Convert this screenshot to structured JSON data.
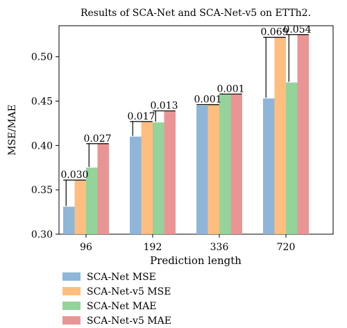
{
  "chart_data": {
    "type": "bar",
    "title": "Results of SCA-Net and SCA-Net-v5 on ETTh2.",
    "xlabel": "Prediction length",
    "ylabel": "MSE/MAE",
    "categories": [
      "96",
      "192",
      "336",
      "720"
    ],
    "ylim": [
      0.3,
      0.535
    ],
    "yticks": [
      "0.30",
      "0.35",
      "0.40",
      "0.45",
      "0.50"
    ],
    "ytick_values": [
      0.3,
      0.35,
      0.4,
      0.45,
      0.5
    ],
    "series": [
      {
        "name": "SCA-Net MSE",
        "values": [
          0.331,
          0.41,
          0.445,
          0.453
        ],
        "color": "#8fb6d9"
      },
      {
        "name": "SCA-Net-v5 MSE",
        "values": [
          0.361,
          0.427,
          0.446,
          0.522
        ],
        "color": "#ffbe7f"
      },
      {
        "name": "SCA-Net MAE",
        "values": [
          0.375,
          0.426,
          0.458,
          0.471
        ],
        "color": "#94d39a"
      },
      {
        "name": "SCA-Net-v5 MAE",
        "values": [
          0.402,
          0.439,
          0.458,
          0.525
        ],
        "color": "#ea9595"
      }
    ],
    "annotations": [
      {
        "category": "96",
        "label": "0.030",
        "pair": "MSE",
        "from": 0.331,
        "to": 0.361
      },
      {
        "category": "96",
        "label": "0.027",
        "pair": "MAE",
        "from": 0.375,
        "to": 0.402
      },
      {
        "category": "192",
        "label": "0.017",
        "pair": "MSE",
        "from": 0.41,
        "to": 0.427
      },
      {
        "category": "192",
        "label": "0.013",
        "pair": "MAE",
        "from": 0.426,
        "to": 0.439
      },
      {
        "category": "336",
        "label": "0.001",
        "pair": "MSE",
        "from": 0.445,
        "to": 0.446
      },
      {
        "category": "336",
        "label": "0.001",
        "pair": "MAE",
        "from": 0.458,
        "to": 0.458
      },
      {
        "category": "720",
        "label": "0.069",
        "pair": "MSE",
        "from": 0.453,
        "to": 0.522
      },
      {
        "category": "720",
        "label": "0.054",
        "pair": "MAE",
        "from": 0.471,
        "to": 0.525
      }
    ],
    "legend_position": "below",
    "grid": false
  }
}
